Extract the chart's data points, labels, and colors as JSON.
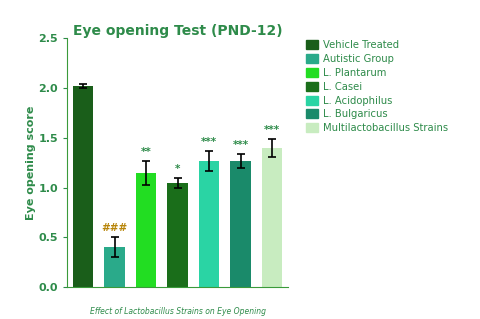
{
  "title": "Eye opening Test (PND-12)",
  "ylabel": "Eye opening score",
  "values": [
    2.02,
    0.4,
    1.15,
    1.05,
    1.27,
    1.27,
    1.4
  ],
  "errors": [
    0.02,
    0.1,
    0.12,
    0.05,
    0.1,
    0.07,
    0.09
  ],
  "bar_colors": [
    "#1a5e1a",
    "#2aaa8a",
    "#22dd22",
    "#1a6e1a",
    "#2ad4a4",
    "#1a8a6a",
    "#c8ecc0"
  ],
  "significance": [
    "",
    "###",
    "**",
    "*",
    "***",
    "***",
    "***"
  ],
  "hash_color": "#b8860b",
  "star_color": "#2e8b4a",
  "axis_color": "#3a9a3a",
  "title_color": "#2e8b4a",
  "ylabel_color": "#2e8b4a",
  "tick_color": "#2e8b4a",
  "ylim": [
    0,
    2.5
  ],
  "yticks": [
    0.0,
    0.5,
    1.0,
    1.5,
    2.0,
    2.5
  ],
  "legend_labels": [
    "Vehicle Treated",
    "Autistic Group",
    "L. Plantarum",
    "L. Casei",
    "L. Acidophilus",
    "L. Bulgaricus",
    "Multilactobacillus Strains"
  ],
  "legend_colors": [
    "#1a5e1a",
    "#2aaa8a",
    "#22dd22",
    "#1a6e1a",
    "#2ad4a4",
    "#1a8a6a",
    "#c8ecc0"
  ],
  "bottom_label": "Effect of Lactobacillus Strains on Eye Opening",
  "bottom_label_color": "#2e8b4a",
  "background_color": "#ffffff"
}
